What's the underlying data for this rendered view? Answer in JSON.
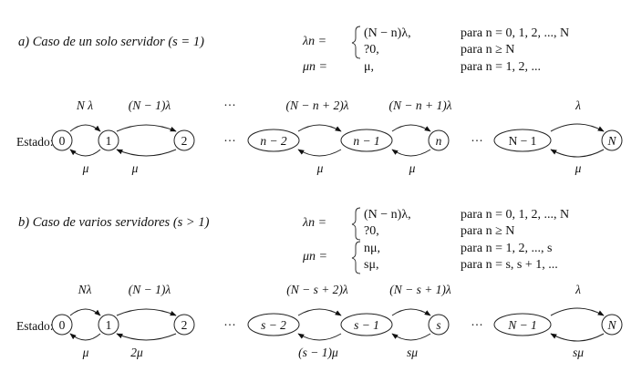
{
  "section_a": {
    "caption": "a) Caso de un solo servidor (s = 1)",
    "lambda_lhs": "λn =",
    "lambda_cases": [
      {
        "expr": "(N − n)λ,",
        "cond": "para n = 0, 1, 2, ..., N"
      },
      {
        "expr": "?0,",
        "cond": "para n ≥ N"
      }
    ],
    "mu_lhs": "μn =",
    "mu_cases": [
      {
        "expr": "μ,",
        "cond": "para n = 1, 2, ..."
      }
    ],
    "state_label": "Estado:",
    "states": [
      "0",
      "1",
      "2",
      "n − 2",
      "n − 1",
      "n",
      "N − 1",
      "N"
    ],
    "top_labels": [
      "N λ",
      "(N − 1)λ",
      "(N − n + 2)λ",
      "(N − n + 1)λ",
      "λ"
    ],
    "bottom_labels": [
      "μ",
      "μ",
      "μ",
      "μ",
      "μ"
    ],
    "ellipsis": "···"
  },
  "section_b": {
    "caption": "b) Caso de varios servidores (s > 1)",
    "lambda_lhs": "λn =",
    "lambda_cases": [
      {
        "expr": "(N − n)λ,",
        "cond": "para n = 0, 1, 2, ..., N"
      },
      {
        "expr": "?0,",
        "cond": "para n ≥ N"
      }
    ],
    "mu_lhs": "μn =",
    "mu_cases": [
      {
        "expr": "nμ,",
        "cond": "para n = 1, 2, ..., s"
      },
      {
        "expr": "sμ,",
        "cond": "para n = s, s + 1, ..."
      }
    ],
    "state_label": "Estado:",
    "states": [
      "0",
      "1",
      "2",
      "s − 2",
      "s − 1",
      "s",
      "N − 1",
      "N"
    ],
    "top_labels": [
      "Nλ",
      "(N − 1)λ",
      "(N − s + 2)λ",
      "(N − s + 1)λ",
      "λ"
    ],
    "bottom_labels": [
      "μ",
      "2μ",
      "(s − 1)μ",
      "sμ",
      "sμ"
    ],
    "ellipsis": "···"
  }
}
